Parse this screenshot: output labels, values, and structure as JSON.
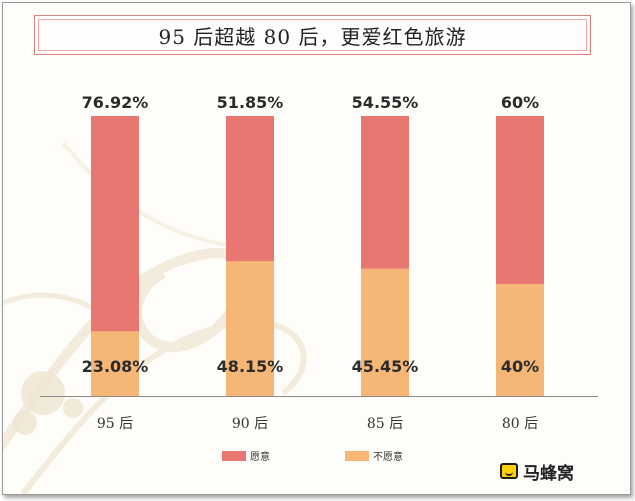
{
  "chart_data": {
    "type": "bar",
    "stacked": true,
    "title": "95 后超越 80 后，更爱红色旅游",
    "categories": [
      "95 后",
      "90 后",
      "85 后",
      "80 后"
    ],
    "series": [
      {
        "name": "愿意",
        "color": "#e87671",
        "values": [
          76.92,
          51.85,
          54.55,
          60
        ],
        "labels": [
          "76.92%",
          "51.85%",
          "54.55%",
          "60%"
        ]
      },
      {
        "name": "不愿意",
        "color": "#f5b676",
        "values": [
          23.08,
          48.15,
          45.45,
          40
        ],
        "labels": [
          "23.08%",
          "48.15%",
          "45.45%",
          "40%"
        ]
      }
    ],
    "ylim": [
      0,
      100
    ],
    "legend_position": "bottom",
    "grid": false
  },
  "watermark": {
    "text": "马蜂窝",
    "icon": "mafengwo-logo-icon"
  }
}
